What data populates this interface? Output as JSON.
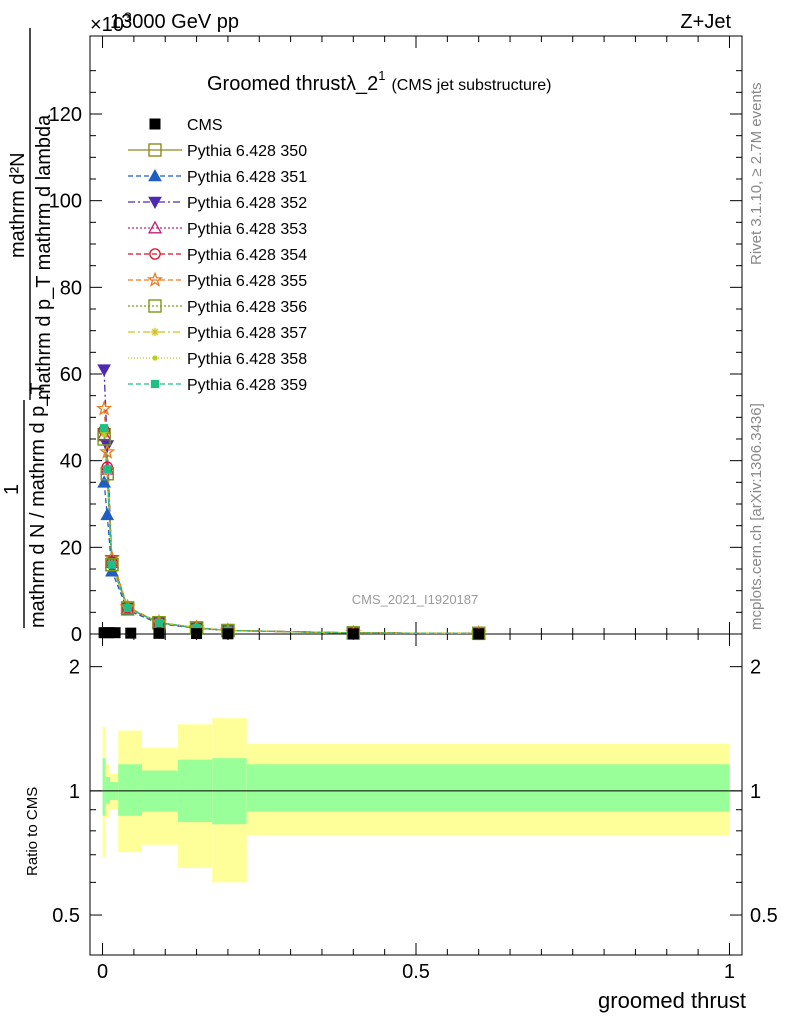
{
  "header": {
    "left": "13000 GeV pp",
    "right": "Z+Jet",
    "exponent": "×10",
    "exponent_power": "3"
  },
  "title": {
    "main": "Groomed thrust",
    "lambda": "λ_2",
    "superscript": "1",
    "sub": "(CMS jet substructure)"
  },
  "side_labels": {
    "rivet": "Rivet 3.1.10, ≥ 2.7M events",
    "mcplots": "mcplots.cern.ch [arXiv:1306.3436]"
  },
  "watermark": "CMS_2021_I1920187",
  "axes": {
    "ylabel_top_num": "mathrm d²N",
    "ylabel_top_den": "mathrm d p_T mathrm d lambda",
    "ylabel_bottom_one": "1",
    "ylabel_bottom_den": "mathrm d N / mathrm d p_T",
    "ratio_ylabel": "Ratio to CMS",
    "xlabel": "groomed thrust",
    "yticks_main": [
      "0",
      "20",
      "40",
      "60",
      "80",
      "100",
      "120"
    ],
    "yticks_ratio": [
      "0.5",
      "1",
      "2"
    ],
    "xticks": [
      "0",
      "0.5",
      "1"
    ]
  },
  "chart_data": {
    "type": "line",
    "title": "Groomed thrust λ_2^1 (CMS jet substructure)",
    "xlabel": "groomed thrust",
    "ylabel": "1 / (mathrm d N / mathrm d p_T) · mathrm d²N / (mathrm d p_T mathrm d lambda)",
    "y_multiplier": 1000,
    "xlim": [
      -0.02,
      1.02
    ],
    "ylim": [
      0,
      138
    ],
    "ratio_ylim": [
      0.4,
      2.4
    ],
    "legend_position": "top-left",
    "data": {
      "name": "CMS",
      "x": [
        0.0025,
        0.01,
        0.02,
        0.045,
        0.09,
        0.15,
        0.2,
        0.4,
        0.6
      ],
      "y": [
        0.3,
        0.3,
        0.3,
        0.2,
        0.15,
        0.1,
        0.05,
        0.02,
        0.01
      ]
    },
    "ratio_bands": [
      {
        "x0": 0.0,
        "x1": 0.005,
        "inner": [
          0.87,
          1.2
        ],
        "outer": [
          0.69,
          1.43
        ]
      },
      {
        "x0": 0.005,
        "x1": 0.012,
        "inner": [
          0.93,
          1.08
        ],
        "outer": [
          0.86,
          1.16
        ]
      },
      {
        "x0": 0.012,
        "x1": 0.025,
        "inner": [
          0.95,
          1.05
        ],
        "outer": [
          0.9,
          1.1
        ]
      },
      {
        "x0": 0.025,
        "x1": 0.063,
        "inner": [
          0.87,
          1.16
        ],
        "outer": [
          0.71,
          1.4
        ]
      },
      {
        "x0": 0.063,
        "x1": 0.12,
        "inner": [
          0.89,
          1.12
        ],
        "outer": [
          0.74,
          1.27
        ]
      },
      {
        "x0": 0.12,
        "x1": 0.175,
        "inner": [
          0.84,
          1.19
        ],
        "outer": [
          0.65,
          1.45
        ]
      },
      {
        "x0": 0.175,
        "x1": 0.23,
        "inner": [
          0.83,
          1.2
        ],
        "outer": [
          0.6,
          1.5
        ]
      },
      {
        "x0": 0.23,
        "x1": 1.0,
        "inner": [
          0.89,
          1.16
        ],
        "outer": [
          0.78,
          1.3
        ]
      }
    ],
    "series": [
      {
        "name": "Pythia 6.428 350",
        "color": "#8b8b1f",
        "marker": "open-square",
        "dash": "",
        "x": [
          0.0025,
          0.0075,
          0.015,
          0.04,
          0.09,
          0.15,
          0.2,
          0.4,
          0.6
        ],
        "y": [
          46,
          37,
          16,
          6,
          2.6,
          1.4,
          0.8,
          0.25,
          0.15
        ]
      },
      {
        "name": "Pythia 6.428 351",
        "color": "#1f5dc2",
        "marker": "filled-triangle-up",
        "dash": "5,3",
        "x": [
          0.0025,
          0.0075,
          0.015,
          0.04,
          0.09,
          0.15,
          0.2,
          0.4,
          0.6
        ],
        "y": [
          35,
          27.5,
          14.5,
          5.5,
          2.4,
          1.3,
          0.8,
          0.25,
          0.15
        ]
      },
      {
        "name": "Pythia 6.428 352",
        "color": "#4e2ab0",
        "marker": "filled-triangle-down",
        "dash": "7,3,2,3",
        "x": [
          0.0025,
          0.0075,
          0.015,
          0.04,
          0.09,
          0.15,
          0.2,
          0.4,
          0.6
        ],
        "y": [
          61,
          43.5,
          17,
          6,
          2.6,
          1.4,
          0.8,
          0.25,
          0.15
        ]
      },
      {
        "name": "Pythia 6.428 353",
        "color": "#c0207a",
        "marker": "open-triangle-up",
        "dash": "2,2",
        "x": [
          0.0025,
          0.0075,
          0.015,
          0.04,
          0.09,
          0.15,
          0.2,
          0.4,
          0.6
        ],
        "y": [
          46,
          38,
          16.5,
          6,
          2.6,
          1.4,
          0.8,
          0.25,
          0.15
        ]
      },
      {
        "name": "Pythia 6.428 354",
        "color": "#d8102a",
        "marker": "open-circle",
        "dash": "5,3",
        "x": [
          0.0025,
          0.0075,
          0.015,
          0.04,
          0.09,
          0.15,
          0.2,
          0.4,
          0.6
        ],
        "y": [
          47,
          38.5,
          16.5,
          6,
          2.6,
          1.4,
          0.8,
          0.25,
          0.15
        ]
      },
      {
        "name": "Pythia 6.428 355",
        "color": "#f07a1a",
        "marker": "open-star",
        "dash": "5,3",
        "x": [
          0.0025,
          0.0075,
          0.015,
          0.04,
          0.09,
          0.15,
          0.2,
          0.4,
          0.6
        ],
        "y": [
          52,
          42,
          17.5,
          6.2,
          2.7,
          1.45,
          0.8,
          0.25,
          0.15
        ]
      },
      {
        "name": "Pythia 6.428 356",
        "color": "#7a9a18",
        "marker": "open-square",
        "dash": "2,2",
        "x": [
          0.0025,
          0.0075,
          0.015,
          0.04,
          0.09,
          0.15,
          0.2,
          0.4,
          0.6
        ],
        "y": [
          45,
          37,
          16,
          6,
          2.6,
          1.4,
          0.8,
          0.25,
          0.15
        ]
      },
      {
        "name": "Pythia 6.428 357",
        "color": "#d2c21a",
        "marker": "small-star",
        "dash": "7,3,2,3",
        "x": [
          0.0025,
          0.0075,
          0.015,
          0.04,
          0.09,
          0.15,
          0.2,
          0.4,
          0.6
        ],
        "y": [
          46.5,
          37.5,
          16.2,
          6,
          2.6,
          1.4,
          0.8,
          0.25,
          0.15
        ]
      },
      {
        "name": "Pythia 6.428 358",
        "color": "#b5d21a",
        "marker": "small-dot",
        "dash": "1,2",
        "x": [
          0.0025,
          0.0075,
          0.015,
          0.04,
          0.09,
          0.15,
          0.2,
          0.4,
          0.6
        ],
        "y": [
          46,
          37.5,
          16.2,
          6,
          2.6,
          1.4,
          0.8,
          0.25,
          0.15
        ]
      },
      {
        "name": "Pythia 6.428 359",
        "color": "#1fc085",
        "marker": "filled-square-small",
        "dash": "5,3",
        "x": [
          0.0025,
          0.0075,
          0.015,
          0.04,
          0.09,
          0.15,
          0.2,
          0.4,
          0.6
        ],
        "y": [
          47.5,
          38,
          16,
          6,
          2.6,
          1.4,
          0.8,
          0.25,
          0.15
        ]
      }
    ]
  }
}
